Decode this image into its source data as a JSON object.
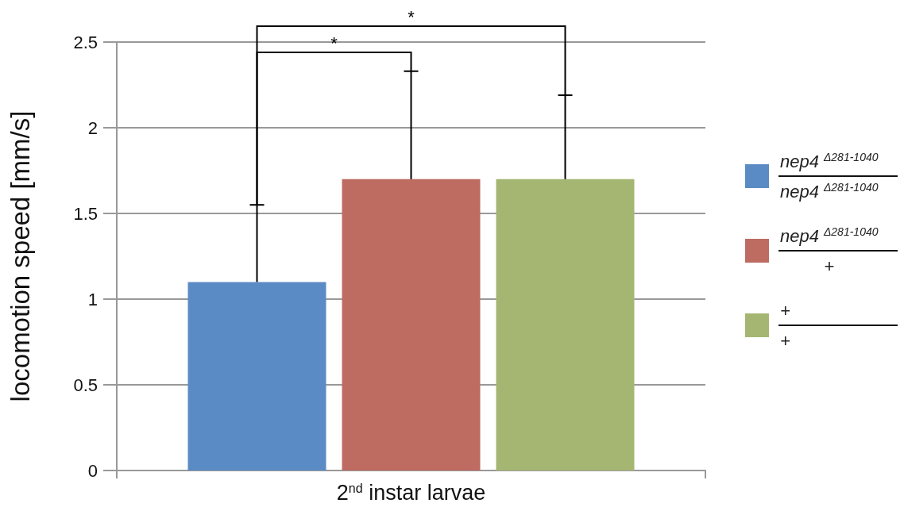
{
  "chart_data": {
    "type": "bar",
    "ylabel": "locomotion speed [mm/s]",
    "categories": [
      "2$^{nd}$ instar larvae"
    ],
    "series": [
      {
        "name": "nep4$^{Δ281-1040}$\nnep4$^{Δ281-1040}$",
        "color": "#5b8bc4",
        "values": [
          1.1
        ],
        "errors": [
          [
            1.1,
            1.55
          ]
        ]
      },
      {
        "name": "nep4$^{Δ281-1040}$\n+",
        "color": "#be6b62",
        "values": [
          1.7
        ],
        "errors": [
          [
            1.7,
            2.33
          ]
        ]
      },
      {
        "name": "+\n+",
        "color": "#a5b672",
        "values": [
          1.7
        ],
        "errors": [
          [
            1.7,
            2.19
          ]
        ]
      }
    ],
    "ylim": [
      0,
      2.5
    ],
    "yticks": [
      0,
      0.5,
      1,
      1.5,
      2,
      2.5
    ],
    "grid": "y",
    "legend": "right",
    "annotations": [
      "*",
      "*"
    ]
  }
}
